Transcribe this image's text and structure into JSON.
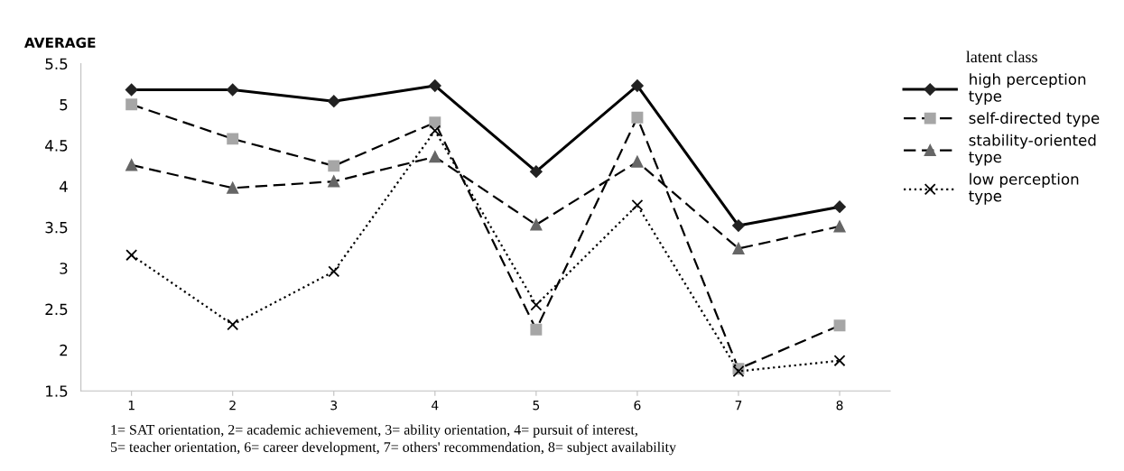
{
  "chart_data": {
    "type": "line",
    "ylabel": "AVERAGE",
    "legend_title": "latent class",
    "categories": [
      "1",
      "2",
      "3",
      "4",
      "5",
      "6",
      "7",
      "8"
    ],
    "series": [
      {
        "name": "high perception\ntype",
        "color": "#222222",
        "marker": "diamond",
        "line_style": "solid",
        "values": [
          5.18,
          5.18,
          5.04,
          5.23,
          4.18,
          5.23,
          3.52,
          3.75
        ]
      },
      {
        "name": "self-directed type",
        "color": "#a6a6a6",
        "marker": "square",
        "line_style": "dashed",
        "values": [
          5.0,
          4.58,
          4.25,
          4.78,
          2.25,
          4.84,
          1.77,
          2.3
        ]
      },
      {
        "name": "stability-oriented\ntype",
        "color": "#666666",
        "marker": "triangle",
        "line_style": "dashed",
        "values": [
          4.26,
          3.98,
          4.06,
          4.36,
          3.53,
          4.3,
          3.24,
          3.51
        ]
      },
      {
        "name": "low perception\ntype",
        "color": "#000000",
        "marker": "cross",
        "line_style": "dotted",
        "values": [
          3.16,
          2.31,
          2.96,
          4.68,
          2.55,
          3.77,
          1.74,
          1.87
        ]
      }
    ],
    "ylim": [
      1.5,
      5.5
    ],
    "yticks": [
      1.5,
      2,
      2.5,
      3,
      3.5,
      4,
      4.5,
      5,
      5.5
    ],
    "grid": false,
    "legend": "right",
    "annotations": [
      "1= SAT orientation, 2= academic achievement, 3= ability orientation, 4= pursuit of interest,",
      "5= teacher orientation, 6= career development, 7= others' recommendation, 8= subject availability"
    ]
  }
}
